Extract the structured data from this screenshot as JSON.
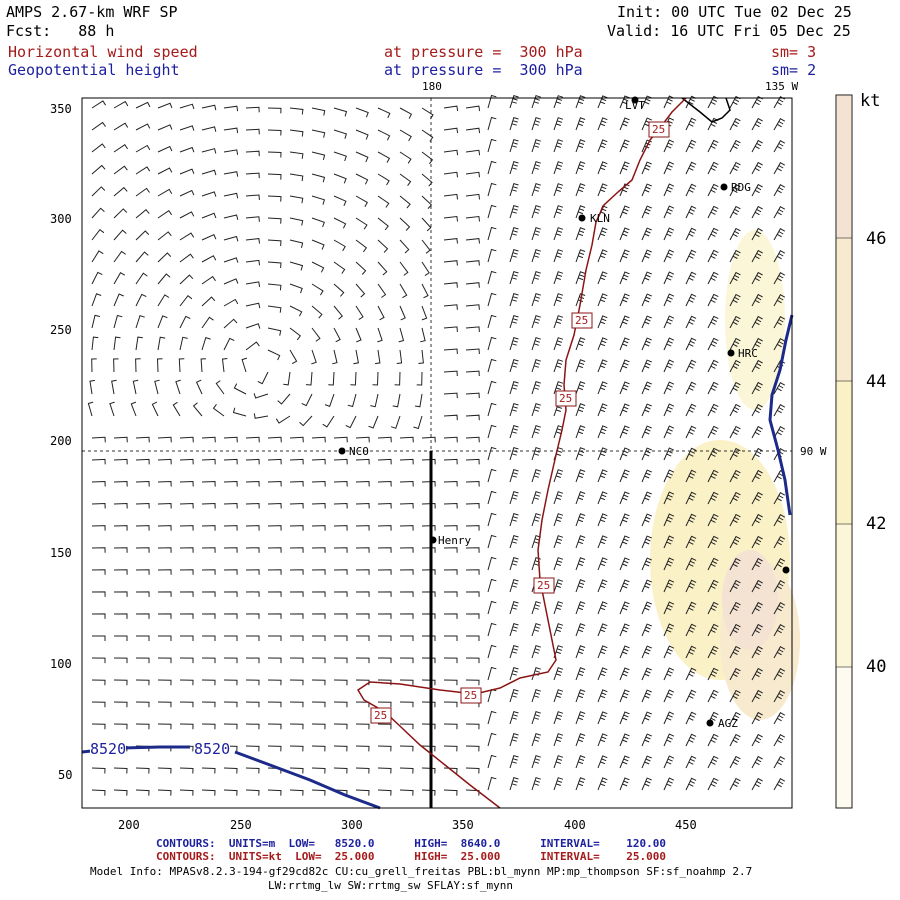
{
  "header": {
    "model": "AMPS 2.67-km WRF SP",
    "fcst": "Fcst:   88 h",
    "init": "Init: 00 UTC Tue 02 Dec 25",
    "valid": "Valid: 16 UTC Fri 05 Dec 25",
    "field1": "Horizontal wind speed",
    "field1_level": "at pressure =  300 hPa",
    "field1_sm": "sm= 3",
    "field2": "Geopotential height",
    "field2_level": "at pressure =  300 hPa",
    "field2_sm": "sm= 2"
  },
  "colorbar": {
    "unit": "kt",
    "labels": [
      "46",
      "44",
      "42",
      "40"
    ],
    "colors": [
      "#fdfbf0",
      "#fbf6d7",
      "#fbf1c6",
      "#f7eacf",
      "#f4e2d3"
    ]
  },
  "axes": {
    "x_ticks": [
      "200",
      "250",
      "300",
      "350",
      "400",
      "450"
    ],
    "y_ticks": [
      "350",
      "300",
      "250",
      "200",
      "150",
      "100",
      "50"
    ]
  },
  "map_labels": {
    "lon_180": "180",
    "lon_135w": "135 W",
    "lon_90w": "90 W"
  },
  "stations": [
    {
      "name": "LVT"
    },
    {
      "name": "RDG"
    },
    {
      "name": "KLN"
    },
    {
      "name": "HRC"
    },
    {
      "name": "NCO"
    },
    {
      "name": "Henry"
    },
    {
      "name": "AGZ"
    },
    {
      "name": ""
    }
  ],
  "contour_labels": {
    "height_a": "8520",
    "height_b": "8520",
    "speed": [
      "25",
      "25",
      "25",
      "25",
      "25",
      "25"
    ]
  },
  "footer": {
    "contours1": "CONTOURS:  UNITS=m  LOW=   8520.0      HIGH=  8640.0      INTERVAL=    120.00",
    "contours2": "CONTOURS:  UNITS=kt  LOW=  25.000      HIGH=  25.000      INTERVAL=    25.000",
    "model_info": "Model Info: MPASv8.2.3-194-gf29cd82c CU:cu_grell_freitas PBL:bl_mynn MP:mp_thompson SF:sf_noahmp 2.7",
    "model_info2": "LW:rrtmg_lw SW:rrtmg_sw SFLAY:sf_mynn"
  },
  "colors": {
    "speed_contour": "#8b1414",
    "height_contour": "#1c2a8a",
    "coast": "#000000"
  }
}
